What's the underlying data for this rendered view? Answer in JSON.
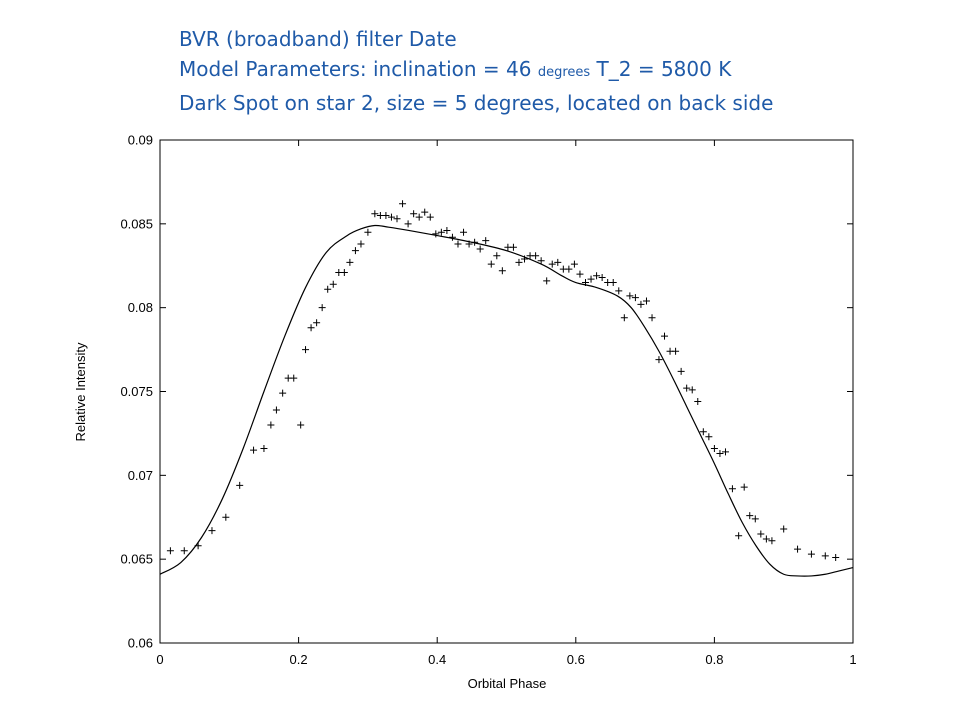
{
  "title": {
    "line1": "BVR (broadband) filter  Date",
    "line2_a": "Model Parameters:    inclination = 46 ",
    "line2_unit": "degrees",
    "line2_b": "    T_2 = 5800 K",
    "line3": "Dark Spot on star 2, size = 5 degrees, located on back side"
  },
  "chart_data": {
    "type": "scatter",
    "xlabel": "Orbital Phase",
    "ylabel": "Relative Intensity",
    "xlim": [
      0,
      1
    ],
    "ylim": [
      0.06,
      0.09
    ],
    "x_ticks": [
      0,
      0.2,
      0.4,
      0.6,
      0.8,
      1
    ],
    "x_tick_labels": [
      "0",
      "0.2",
      "0.4",
      "0.6",
      "0.8",
      "1"
    ],
    "y_ticks": [
      0.06,
      0.065,
      0.07,
      0.075,
      0.08,
      0.085,
      0.09
    ],
    "y_tick_labels": [
      "0.06",
      "0.065",
      "0.07",
      "0.075",
      "0.08",
      "0.085",
      "0.09"
    ],
    "grid": false,
    "series": [
      {
        "kind": "points",
        "marker": "+",
        "points": [
          [
            0.015,
            0.0655
          ],
          [
            0.035,
            0.0655
          ],
          [
            0.055,
            0.0658
          ],
          [
            0.075,
            0.0667
          ],
          [
            0.095,
            0.0675
          ],
          [
            0.115,
            0.0694
          ],
          [
            0.135,
            0.0715
          ],
          [
            0.15,
            0.0716
          ],
          [
            0.16,
            0.073
          ],
          [
            0.168,
            0.0739
          ],
          [
            0.177,
            0.0749
          ],
          [
            0.185,
            0.0758
          ],
          [
            0.193,
            0.0758
          ],
          [
            0.203,
            0.073
          ],
          [
            0.21,
            0.0775
          ],
          [
            0.218,
            0.0788
          ],
          [
            0.226,
            0.0791
          ],
          [
            0.234,
            0.08
          ],
          [
            0.242,
            0.0811
          ],
          [
            0.25,
            0.0814
          ],
          [
            0.258,
            0.0821
          ],
          [
            0.266,
            0.0821
          ],
          [
            0.274,
            0.0827
          ],
          [
            0.282,
            0.0834
          ],
          [
            0.29,
            0.0838
          ],
          [
            0.3,
            0.0845
          ],
          [
            0.31,
            0.0856
          ],
          [
            0.318,
            0.0855
          ],
          [
            0.326,
            0.0855
          ],
          [
            0.334,
            0.0854
          ],
          [
            0.342,
            0.0853
          ],
          [
            0.35,
            0.0862
          ],
          [
            0.358,
            0.085
          ],
          [
            0.366,
            0.0856
          ],
          [
            0.374,
            0.0854
          ],
          [
            0.382,
            0.0857
          ],
          [
            0.39,
            0.0854
          ],
          [
            0.398,
            0.0844
          ],
          [
            0.406,
            0.0845
          ],
          [
            0.414,
            0.0846
          ],
          [
            0.422,
            0.0842
          ],
          [
            0.43,
            0.0838
          ],
          [
            0.438,
            0.0845
          ],
          [
            0.446,
            0.0838
          ],
          [
            0.454,
            0.0839
          ],
          [
            0.462,
            0.0835
          ],
          [
            0.47,
            0.084
          ],
          [
            0.478,
            0.0826
          ],
          [
            0.486,
            0.0831
          ],
          [
            0.494,
            0.0822
          ],
          [
            0.502,
            0.0836
          ],
          [
            0.51,
            0.0836
          ],
          [
            0.518,
            0.0827
          ],
          [
            0.526,
            0.0829
          ],
          [
            0.534,
            0.0831
          ],
          [
            0.542,
            0.0831
          ],
          [
            0.55,
            0.0828
          ],
          [
            0.558,
            0.0816
          ],
          [
            0.566,
            0.0826
          ],
          [
            0.574,
            0.0827
          ],
          [
            0.582,
            0.0823
          ],
          [
            0.59,
            0.0823
          ],
          [
            0.598,
            0.0826
          ],
          [
            0.606,
            0.082
          ],
          [
            0.614,
            0.0815
          ],
          [
            0.622,
            0.0817
          ],
          [
            0.63,
            0.0819
          ],
          [
            0.638,
            0.0818
          ],
          [
            0.646,
            0.0815
          ],
          [
            0.654,
            0.0815
          ],
          [
            0.662,
            0.081
          ],
          [
            0.67,
            0.0794
          ],
          [
            0.678,
            0.0807
          ],
          [
            0.686,
            0.0806
          ],
          [
            0.694,
            0.0802
          ],
          [
            0.702,
            0.0804
          ],
          [
            0.71,
            0.0794
          ],
          [
            0.72,
            0.0769
          ],
          [
            0.728,
            0.0783
          ],
          [
            0.736,
            0.0774
          ],
          [
            0.744,
            0.0774
          ],
          [
            0.752,
            0.0762
          ],
          [
            0.76,
            0.0752
          ],
          [
            0.768,
            0.0751
          ],
          [
            0.776,
            0.0744
          ],
          [
            0.784,
            0.0726
          ],
          [
            0.792,
            0.0723
          ],
          [
            0.8,
            0.0716
          ],
          [
            0.808,
            0.0713
          ],
          [
            0.816,
            0.0714
          ],
          [
            0.826,
            0.0692
          ],
          [
            0.835,
            0.0664
          ],
          [
            0.843,
            0.0693
          ],
          [
            0.851,
            0.0676
          ],
          [
            0.859,
            0.0674
          ],
          [
            0.867,
            0.0665
          ],
          [
            0.875,
            0.0662
          ],
          [
            0.883,
            0.0661
          ],
          [
            0.9,
            0.0668
          ],
          [
            0.92,
            0.0656
          ],
          [
            0.94,
            0.0653
          ],
          [
            0.96,
            0.0652
          ],
          [
            0.975,
            0.0651
          ]
        ]
      },
      {
        "kind": "line",
        "points": [
          [
            0,
            0.0641
          ],
          [
            0.03,
            0.0648
          ],
          [
            0.06,
            0.0663
          ],
          [
            0.09,
            0.0686
          ],
          [
            0.12,
            0.0716
          ],
          [
            0.15,
            0.075
          ],
          [
            0.18,
            0.0783
          ],
          [
            0.21,
            0.0812
          ],
          [
            0.24,
            0.0833
          ],
          [
            0.27,
            0.0843
          ],
          [
            0.29,
            0.0847
          ],
          [
            0.31,
            0.0849
          ],
          [
            0.33,
            0.0848
          ],
          [
            0.36,
            0.0846
          ],
          [
            0.4,
            0.0843
          ],
          [
            0.45,
            0.0839
          ],
          [
            0.5,
            0.0834
          ],
          [
            0.55,
            0.0826
          ],
          [
            0.58,
            0.0819
          ],
          [
            0.6,
            0.0815
          ],
          [
            0.63,
            0.0812
          ],
          [
            0.66,
            0.0807
          ],
          [
            0.68,
            0.08
          ],
          [
            0.7,
            0.0788
          ],
          [
            0.72,
            0.0774
          ],
          [
            0.74,
            0.0758
          ],
          [
            0.76,
            0.0741
          ],
          [
            0.78,
            0.0724
          ],
          [
            0.8,
            0.0707
          ],
          [
            0.82,
            0.0689
          ],
          [
            0.84,
            0.0672
          ],
          [
            0.86,
            0.0658
          ],
          [
            0.88,
            0.0647
          ],
          [
            0.9,
            0.0641
          ],
          [
            0.92,
            0.064
          ],
          [
            0.94,
            0.064
          ],
          [
            0.96,
            0.0641
          ],
          [
            0.98,
            0.0643
          ],
          [
            1,
            0.0645
          ]
        ]
      }
    ]
  }
}
